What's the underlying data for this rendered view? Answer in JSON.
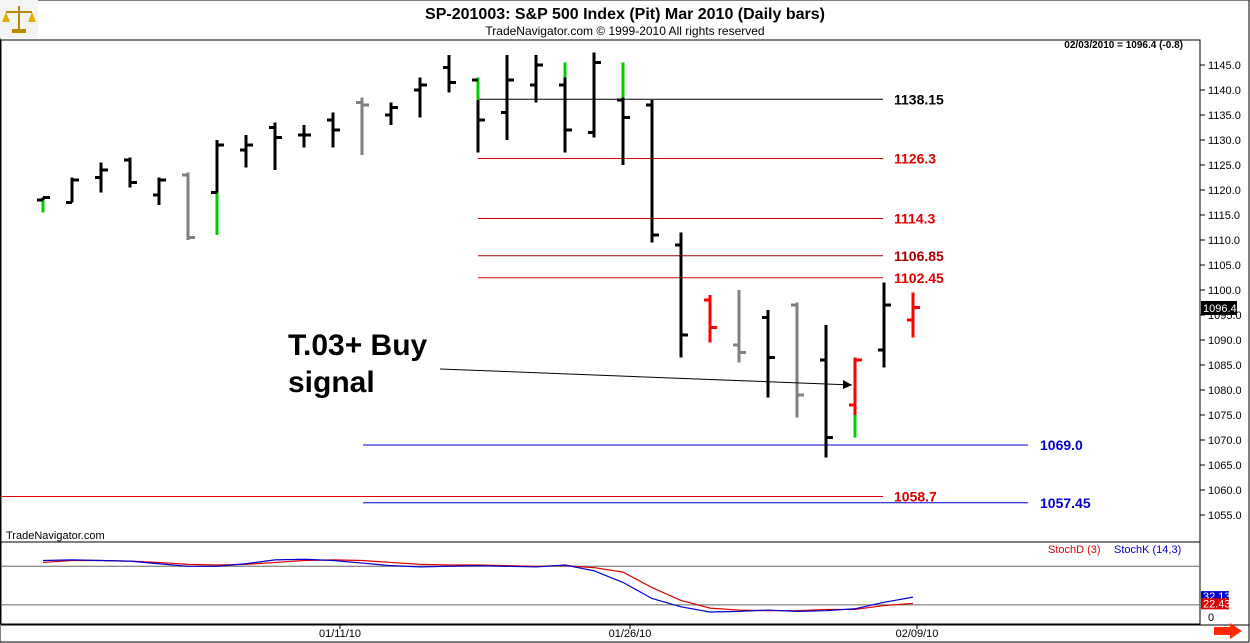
{
  "header": {
    "title": "SP-201003:  S&P 500 Index (Pit) Mar 2010  (Daily bars)",
    "subtitle": "TradeNavigator.com © 1999-2010 All rights reserved",
    "last_info": "02/03/2010 = 1096.4 (-0.8)",
    "watermark": "TradeNavigator.com",
    "logo_icon": "scales-icon"
  },
  "chart_data": [
    {
      "type": "ohlc",
      "ylim": [
        1052,
        1148
      ],
      "yticks": [
        1055.0,
        1060.0,
        1065.0,
        1070.0,
        1075.0,
        1080.0,
        1085.0,
        1090.0,
        1095.0,
        1100.0,
        1105.0,
        1110.0,
        1115.0,
        1120.0,
        1125.0,
        1130.0,
        1135.0,
        1140.0,
        1145.0
      ],
      "xtick_labels": [
        "01/11/10",
        "01/26/10",
        "02/09/10"
      ],
      "last_price_label": "1096.4",
      "bars": [
        {
          "o": 1118.0,
          "h": 1118.5,
          "l": 1115.5,
          "c": 1118.5,
          "color": "#000000",
          "lowseg": {
            "color": "#00cc00",
            "from": 1115.5,
            "to": 1118.0
          }
        },
        {
          "o": 1117.5,
          "h": 1122.5,
          "l": 1117.5,
          "c": 1122.0,
          "color": "#000000"
        },
        {
          "o": 1122.5,
          "h": 1125.5,
          "l": 1119.5,
          "c": 1124.0,
          "color": "#000000"
        },
        {
          "o": 1126.0,
          "h": 1126.5,
          "l": 1120.5,
          "c": 1121.5,
          "color": "#000000"
        },
        {
          "o": 1119.0,
          "h": 1122.5,
          "l": 1117.0,
          "c": 1122.0,
          "color": "#000000"
        },
        {
          "o": 1123.0,
          "h": 1123.5,
          "l": 1110.0,
          "c": 1110.5,
          "color": "#808080"
        },
        {
          "o": 1119.5,
          "h": 1130.0,
          "l": 1111.0,
          "c": 1129.0,
          "color": "#000000",
          "lowseg": {
            "color": "#00cc00",
            "from": 1111.0,
            "to": 1119.5
          }
        },
        {
          "o": 1128.0,
          "h": 1131.0,
          "l": 1124.5,
          "c": 1129.0,
          "color": "#000000"
        },
        {
          "o": 1132.5,
          "h": 1133.5,
          "l": 1124.0,
          "c": 1130.5,
          "color": "#000000"
        },
        {
          "o": 1131.0,
          "h": 1133.0,
          "l": 1128.5,
          "c": 1131.0,
          "color": "#000000"
        },
        {
          "o": 1134.0,
          "h": 1135.5,
          "l": 1128.5,
          "c": 1132.0,
          "color": "#000000"
        },
        {
          "o": 1137.5,
          "h": 1138.5,
          "l": 1127.0,
          "c": 1137.0,
          "color": "#808080"
        },
        {
          "o": 1135.0,
          "h": 1137.5,
          "l": 1133.0,
          "c": 1136.5,
          "color": "#000000"
        },
        {
          "o": 1140.0,
          "h": 1142.5,
          "l": 1134.5,
          "c": 1141.0,
          "color": "#000000"
        },
        {
          "o": 1144.5,
          "h": 1147.0,
          "l": 1139.5,
          "c": 1141.5,
          "color": "#000000"
        },
        {
          "o": 1142.0,
          "h": 1142.5,
          "l": 1127.5,
          "c": 1134.0,
          "color": "#000000",
          "highseg": {
            "color": "#00cc00",
            "from": 1138.0,
            "to": 1142.5
          }
        },
        {
          "o": 1135.5,
          "h": 1147.0,
          "l": 1130.0,
          "c": 1142.0,
          "color": "#000000"
        },
        {
          "o": 1141.0,
          "h": 1147.0,
          "l": 1137.5,
          "c": 1145.0,
          "color": "#000000"
        },
        {
          "o": 1141.0,
          "h": 1145.5,
          "l": 1127.5,
          "c": 1132.0,
          "color": "#000000",
          "highseg": {
            "color": "#00cc00",
            "from": 1142.5,
            "to": 1145.5
          }
        },
        {
          "o": 1131.5,
          "h": 1147.5,
          "l": 1130.5,
          "c": 1145.5,
          "color": "#000000"
        },
        {
          "o": 1138.0,
          "h": 1145.5,
          "l": 1125.0,
          "c": 1134.5,
          "color": "#000000",
          "highseg": {
            "color": "#00cc00",
            "from": 1138.5,
            "to": 1145.5
          }
        },
        {
          "o": 1137.0,
          "h": 1138.0,
          "l": 1109.5,
          "c": 1111.0,
          "color": "#000000"
        },
        {
          "o": 1109.0,
          "h": 1111.5,
          "l": 1086.5,
          "c": 1091.0,
          "color": "#000000"
        },
        {
          "o": 1098.0,
          "h": 1099.0,
          "l": 1089.5,
          "c": 1092.5,
          "color": "#ff0000"
        },
        {
          "o": 1089.0,
          "h": 1100.0,
          "l": 1085.5,
          "c": 1087.5,
          "color": "#808080"
        },
        {
          "o": 1094.5,
          "h": 1096.0,
          "l": 1078.5,
          "c": 1086.5,
          "color": "#000000"
        },
        {
          "o": 1097.0,
          "h": 1097.5,
          "l": 1074.5,
          "c": 1079.0,
          "color": "#808080"
        },
        {
          "o": 1086.0,
          "h": 1093.0,
          "l": 1066.5,
          "c": 1070.5,
          "color": "#000000"
        },
        {
          "o": 1077.0,
          "h": 1086.5,
          "l": 1070.5,
          "c": 1086.0,
          "color": "#ff0000",
          "lowseg": {
            "color": "#00cc00",
            "from": 1070.5,
            "to": 1075.0
          }
        },
        {
          "o": 1088.0,
          "h": 1101.5,
          "l": 1084.5,
          "c": 1097.0,
          "color": "#000000"
        },
        {
          "o": 1094.0,
          "h": 1099.5,
          "l": 1090.5,
          "c": 1096.5,
          "color": "#ff0000"
        }
      ],
      "levels": [
        {
          "value": 1138.15,
          "label": "1138.15",
          "color": "#000000"
        },
        {
          "value": 1126.3,
          "label": "1126.3",
          "color": "#dd0000"
        },
        {
          "value": 1114.3,
          "label": "1114.3",
          "color": "#dd0000"
        },
        {
          "value": 1106.85,
          "label": "1106.85",
          "color": "#aa0000"
        },
        {
          "value": 1102.45,
          "label": "1102.45",
          "color": "#dd0000"
        },
        {
          "value": 1069.0,
          "label": "1069.0",
          "color": "#0000cc"
        },
        {
          "value": 1058.7,
          "label": "1058.7",
          "color": "#dd0000"
        },
        {
          "value": 1057.45,
          "label": "1057.45",
          "color": "#0000cc"
        }
      ],
      "annotation": {
        "line1": "T.03+ Buy",
        "line2": "signal",
        "points_to_value": 1081.0
      }
    },
    {
      "type": "line",
      "ylim": [
        -5,
        110
      ],
      "yticks_right": [
        "0"
      ],
      "series": [
        {
          "name": "StochD (3)",
          "color": "#dd0000",
          "values": [
            86,
            89,
            89,
            88,
            86,
            83,
            82,
            83,
            86,
            89,
            90,
            89,
            86,
            83,
            82,
            82,
            81,
            80,
            81,
            78,
            71,
            47,
            27,
            15,
            12,
            11,
            11,
            13,
            13,
            19,
            22.43
          ]
        },
        {
          "name": "StochK (14,3)",
          "color": "#0000cc",
          "values": [
            89,
            90,
            89,
            88,
            84,
            80,
            80,
            84,
            90,
            91,
            89,
            85,
            81,
            79,
            80,
            81,
            80,
            79,
            82,
            73,
            55,
            30,
            17,
            9,
            10,
            12,
            10,
            11,
            14,
            24,
            32.13
          ]
        }
      ],
      "right_labels": {
        "d": "22.43",
        "k": "32.13"
      }
    }
  ]
}
